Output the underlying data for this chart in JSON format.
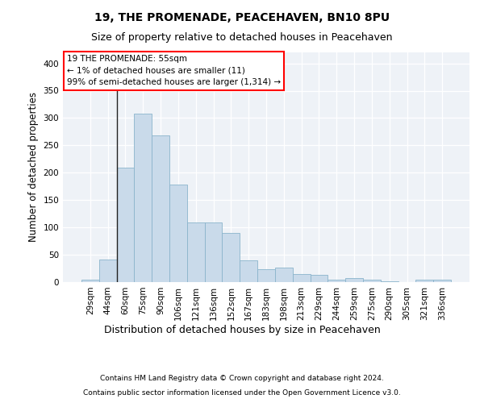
{
  "title": "19, THE PROMENADE, PEACEHAVEN, BN10 8PU",
  "subtitle": "Size of property relative to detached houses in Peacehaven",
  "xlabel": "Distribution of detached houses by size in Peacehaven",
  "ylabel": "Number of detached properties",
  "categories": [
    "29sqm",
    "44sqm",
    "60sqm",
    "75sqm",
    "90sqm",
    "106sqm",
    "121sqm",
    "136sqm",
    "152sqm",
    "167sqm",
    "183sqm",
    "198sqm",
    "213sqm",
    "229sqm",
    "244sqm",
    "259sqm",
    "275sqm",
    "290sqm",
    "305sqm",
    "321sqm",
    "336sqm"
  ],
  "values": [
    5,
    42,
    210,
    308,
    268,
    178,
    109,
    109,
    90,
    40,
    24,
    26,
    15,
    13,
    5,
    7,
    4,
    2,
    0,
    4,
    4
  ],
  "bar_color": "#c9daea",
  "bar_edge_color": "#8ab4cc",
  "annotation_box_text": "19 THE PROMENADE: 55sqm\n← 1% of detached houses are smaller (11)\n99% of semi-detached houses are larger (1,314) →",
  "vline_x": 1.5,
  "ylim": [
    0,
    420
  ],
  "yticks": [
    0,
    50,
    100,
    150,
    200,
    250,
    300,
    350,
    400
  ],
  "background_color": "#eef2f7",
  "footer_line1": "Contains HM Land Registry data © Crown copyright and database right 2024.",
  "footer_line2": "Contains public sector information licensed under the Open Government Licence v3.0.",
  "title_fontsize": 10,
  "subtitle_fontsize": 9,
  "tick_fontsize": 7.5,
  "ylabel_fontsize": 8.5,
  "xlabel_fontsize": 9,
  "footer_fontsize": 6.5,
  "annotation_fontsize": 7.5
}
